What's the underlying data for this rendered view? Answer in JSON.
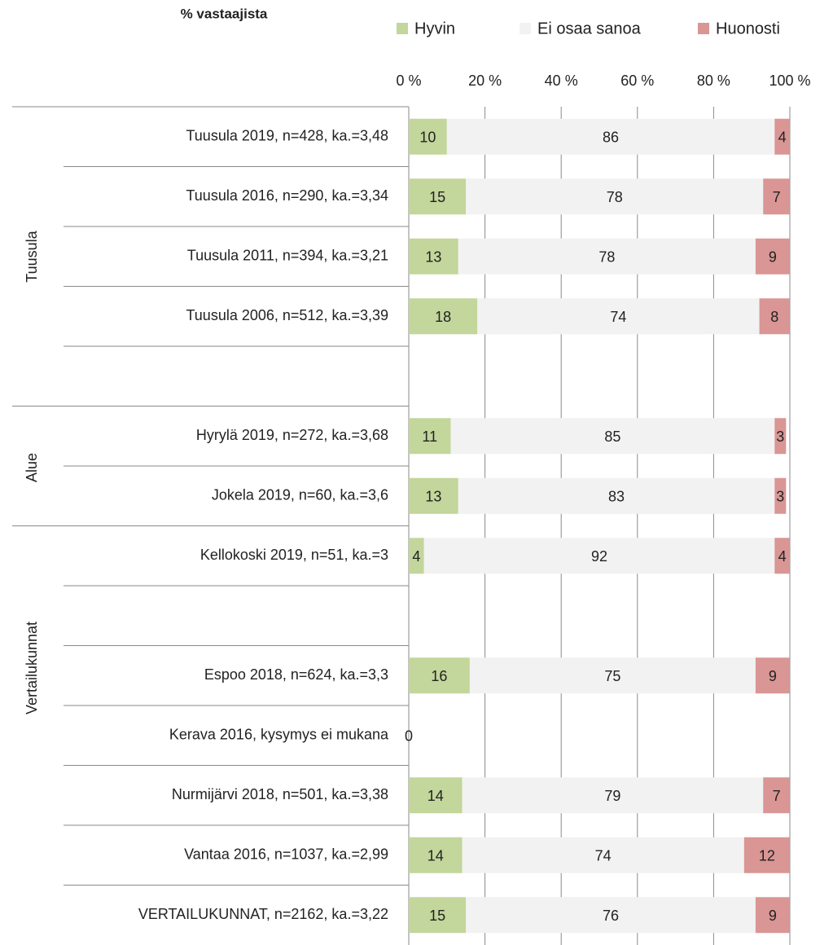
{
  "chart_data": {
    "type": "stacked-bar-horizontal",
    "title": "% vastaajista",
    "groups": [
      "Tuusula",
      "Alue",
      "Vertailukunnat"
    ],
    "categories": [
      "Tuusula 2019, n=428, ka.=3,48",
      "Tuusula 2016, n=290, ka.=3,34",
      "Tuusula 2011, n=394, ka.=3,21",
      "Tuusula 2006, n=512, ka.=3,39",
      null,
      "Hyrylä 2019, n=272, ka.=3,68",
      "Jokela 2019, n=60, ka.=3,6",
      "Kellokoski 2019, n=51, ka.=3",
      null,
      "Espoo 2018, n=624, ka.=3,3",
      "Kerava 2016, kysymys ei mukana",
      "Nurmijärvi 2018, n=501, ka.=3,38",
      "Vantaa 2016, n=1037, ka.=2,99",
      "VERTAILUKUNNAT, n=2162, ka.=3,22"
    ],
    "series": [
      {
        "name": "Hyvin",
        "color": "#c3d69b",
        "values": [
          10,
          15,
          13,
          18,
          null,
          11,
          13,
          4,
          null,
          16,
          0,
          14,
          14,
          15
        ]
      },
      {
        "name": "Ei osaa sanoa",
        "color": "#f2f2f2",
        "values": [
          86,
          78,
          78,
          74,
          null,
          85,
          83,
          92,
          null,
          75,
          null,
          79,
          74,
          76
        ]
      },
      {
        "name": "Huonosti",
        "color": "#d99694",
        "values": [
          4,
          7,
          9,
          8,
          null,
          3,
          3,
          4,
          null,
          9,
          null,
          7,
          12,
          9
        ]
      }
    ],
    "xlim": [
      0,
      100
    ],
    "xticks": [
      {
        "value": 0,
        "label": "0 %"
      },
      {
        "value": 20,
        "label": "20 %"
      },
      {
        "value": 40,
        "label": "40 %"
      },
      {
        "value": 60,
        "label": "60 %"
      },
      {
        "value": 80,
        "label": "80 %"
      },
      {
        "value": 100,
        "label": "100 %"
      }
    ],
    "grid": true,
    "legend": "top"
  }
}
